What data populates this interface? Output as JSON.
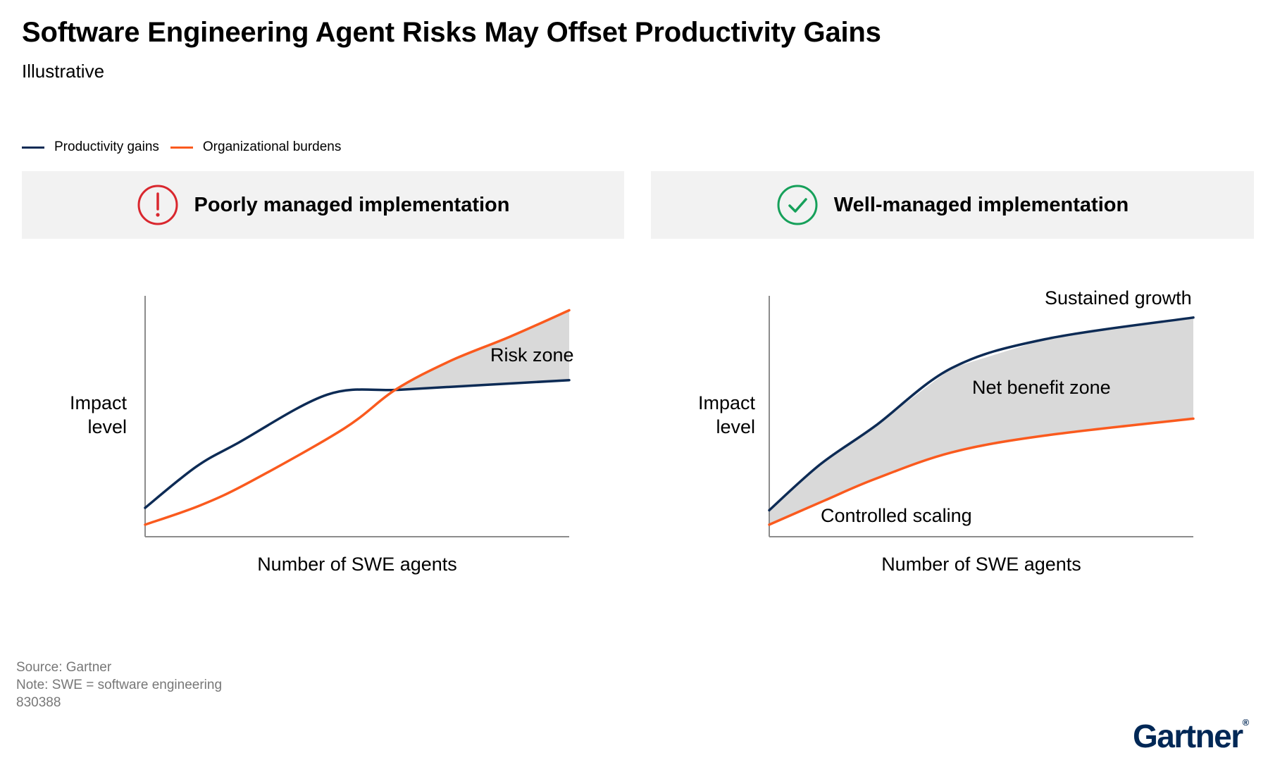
{
  "header": {
    "title": "Software Engineering Agent Risks May Offset Productivity Gains",
    "subtitle": "Illustrative"
  },
  "legend": [
    {
      "label": "Productivity gains",
      "color": "#0d2b55"
    },
    {
      "label": "Organizational burdens",
      "color": "#fa5a1e"
    }
  ],
  "panels": [
    {
      "heading": "Poorly managed implementation",
      "icon": "exclamation-circle-icon",
      "icon_color": "#d9272e"
    },
    {
      "heading": "Well-managed implementation",
      "icon": "check-circle-icon",
      "icon_color": "#16a05a"
    }
  ],
  "chart_data": [
    {
      "type": "line",
      "title": "Poorly managed implementation",
      "xlabel": "Number of SWE agents",
      "ylabel": "Impact level",
      "xlim": [
        0,
        100
      ],
      "ylim": [
        0,
        100
      ],
      "shaded_region": {
        "label": "Risk zone",
        "between": [
          "Organizational burdens",
          "Productivity gains"
        ],
        "color": "#d9d9d9"
      },
      "series": [
        {
          "name": "Productivity gains",
          "color": "#0d2b55",
          "x": [
            0,
            12,
            22,
            43,
            60,
            80,
            100
          ],
          "y": [
            12,
            29,
            39,
            59,
            61,
            63,
            65
          ]
        },
        {
          "name": "Organizational burdens",
          "color": "#fa5a1e",
          "x": [
            0,
            13,
            25,
            47,
            59,
            72,
            86,
            100
          ],
          "y": [
            5,
            13,
            23,
            45,
            61,
            73,
            83,
            94
          ]
        }
      ]
    },
    {
      "type": "area",
      "title": "Well-managed implementation",
      "xlabel": "Number of SWE agents",
      "ylabel": "Impact level",
      "xlim": [
        0,
        100
      ],
      "ylim": [
        0,
        100
      ],
      "shaded_region": {
        "label": "Net benefit zone",
        "between": [
          "Organizational burdens",
          "Productivity gains"
        ],
        "color": "#d9d9d9"
      },
      "annotations": [
        "Sustained growth",
        "Controlled scaling"
      ],
      "series": [
        {
          "name": "Productivity gains",
          "color": "#0d2b55",
          "x": [
            0,
            12,
            25,
            43,
            65,
            100
          ],
          "y": [
            11,
            30,
            46,
            70,
            82,
            91
          ]
        },
        {
          "name": "Organizational burdens",
          "color": "#fa5a1e",
          "x": [
            0,
            13,
            25,
            43,
            65,
            100
          ],
          "y": [
            5,
            15,
            24,
            35,
            42,
            49
          ]
        }
      ]
    }
  ],
  "footer": {
    "source": "Source: Gartner",
    "note": "Note: SWE = software engineering",
    "id": "830388"
  },
  "logo": {
    "text": "Gartner",
    "mark": "®"
  }
}
